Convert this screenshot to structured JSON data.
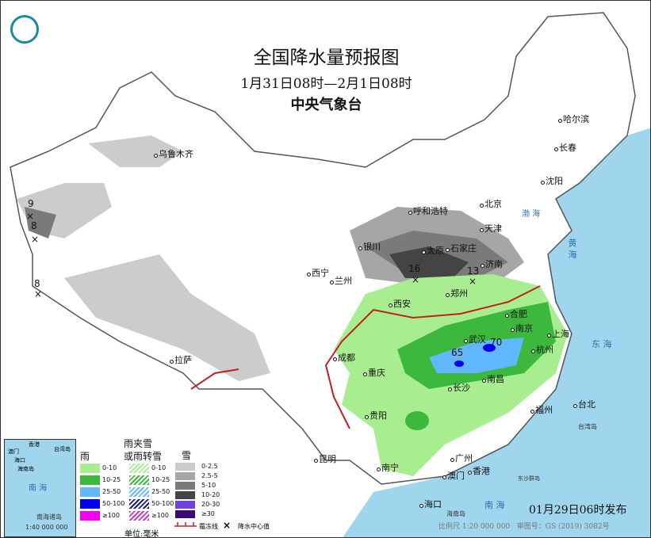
{
  "header": {
    "title": "全国降水量预报图",
    "period": "1月31日08时—2月1日08时",
    "agency": "中央气象台"
  },
  "cities": [
    {
      "n": "乌鲁木齐"
    },
    {
      "n": "呼和浩特"
    },
    {
      "n": "北京"
    },
    {
      "n": "天津"
    },
    {
      "n": "哈尔滨"
    },
    {
      "n": "长春"
    },
    {
      "n": "沈阳"
    },
    {
      "n": "银川"
    },
    {
      "n": "太原"
    },
    {
      "n": "石家庄"
    },
    {
      "n": "济南"
    },
    {
      "n": "西宁"
    },
    {
      "n": "兰州"
    },
    {
      "n": "郑州"
    },
    {
      "n": "西安"
    },
    {
      "n": "合肥"
    },
    {
      "n": "南京"
    },
    {
      "n": "上海"
    },
    {
      "n": "武汉"
    },
    {
      "n": "杭州"
    },
    {
      "n": "成都"
    },
    {
      "n": "重庆"
    },
    {
      "n": "拉萨"
    },
    {
      "n": "长沙"
    },
    {
      "n": "南昌"
    },
    {
      "n": "福州"
    },
    {
      "n": "台北"
    },
    {
      "n": "贵阳"
    },
    {
      "n": "昆明"
    },
    {
      "n": "南宁"
    },
    {
      "n": "广州"
    },
    {
      "n": "香港"
    },
    {
      "n": "澳门"
    },
    {
      "n": "海口"
    }
  ],
  "center_values": [
    "9",
    "8",
    "8",
    "16",
    "13",
    "65",
    "70"
  ],
  "sea_labels": {
    "east_sea": "东 海",
    "yellow_sea": "黄 海",
    "bohai": "渤 海",
    "south_sea": "南 海",
    "taiwan": "台湾岛",
    "hainan": "海南岛",
    "dongsha": "东沙群岛"
  },
  "legend": {
    "rain": {
      "title": "雨",
      "items": [
        {
          "label": "0-10",
          "color": "#a8ee90"
        },
        {
          "label": "10-25",
          "color": "#3cb83c"
        },
        {
          "label": "25-50",
          "color": "#62b8ff"
        },
        {
          "label": "50-100",
          "color": "#0000f5"
        },
        {
          "label": "≥100",
          "color": "#f500f5"
        }
      ]
    },
    "mixed": {
      "title1": "雨夹雪",
      "title2": "或雨转雪",
      "items": [
        {
          "label": "0-10",
          "color": "#a8ee90"
        },
        {
          "label": "10-25",
          "color": "#3cb83c"
        },
        {
          "label": "25-50",
          "color": "#62b8ff"
        },
        {
          "label": "50-100",
          "color": "#1a1a90"
        },
        {
          "label": "≥100",
          "color": "#c040c0"
        }
      ]
    },
    "snow": {
      "title": "雪",
      "items": [
        {
          "label": "0-2.5",
          "color": "#cccccc"
        },
        {
          "label": "2.5-5",
          "color": "#a6a6a6"
        },
        {
          "label": "5-10",
          "color": "#7a7a7a"
        },
        {
          "label": "10-20",
          "color": "#444444"
        },
        {
          "label": "20-30",
          "color": "#7040e0"
        },
        {
          "label": "≥30",
          "color": "#3a0a70"
        }
      ]
    },
    "unit": "单位:毫米",
    "freeze_line": "霜冻线",
    "center_mark": "降水中心值",
    "center_symbol": "×"
  },
  "inset": {
    "sea": "南 海",
    "caption": "南海诸岛",
    "scale": "1:40 000 000",
    "labels": [
      "香港",
      "澳门",
      "台湾岛",
      "海口",
      "海南岛"
    ]
  },
  "footer": {
    "issued": "01月29日06时发布",
    "scale": "比例尺 1:20 000 000",
    "map_no": "审图号：GS (2019) 3082号"
  }
}
